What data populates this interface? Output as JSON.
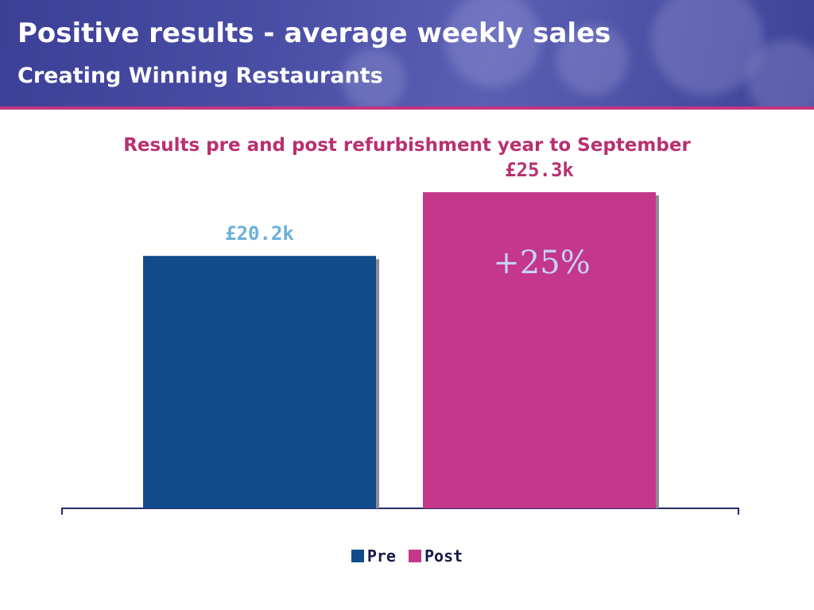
{
  "header": {
    "title": "Positive results - average weekly sales",
    "subtitle": "Creating Winning Restaurants"
  },
  "chart_data": {
    "type": "bar",
    "title": "Results pre and post refurbishment year to September",
    "categories": [
      "Pre",
      "Post"
    ],
    "values": [
      20.2,
      25.3
    ],
    "data_labels": [
      "£20.2k",
      "£25.3k"
    ],
    "colors": [
      "#114b8b",
      "#c4378a"
    ],
    "label_colors": [
      "#6ab0dc",
      "#b8306f"
    ],
    "annotation": "+25%",
    "annotation_color": "#c5d3f5",
    "ylim": [
      0,
      28.6
    ],
    "grid": false,
    "legend": [
      {
        "name": "Pre",
        "color": "#114b8b"
      },
      {
        "name": "Post",
        "color": "#c4378a"
      }
    ],
    "legend_position": "bottom"
  }
}
